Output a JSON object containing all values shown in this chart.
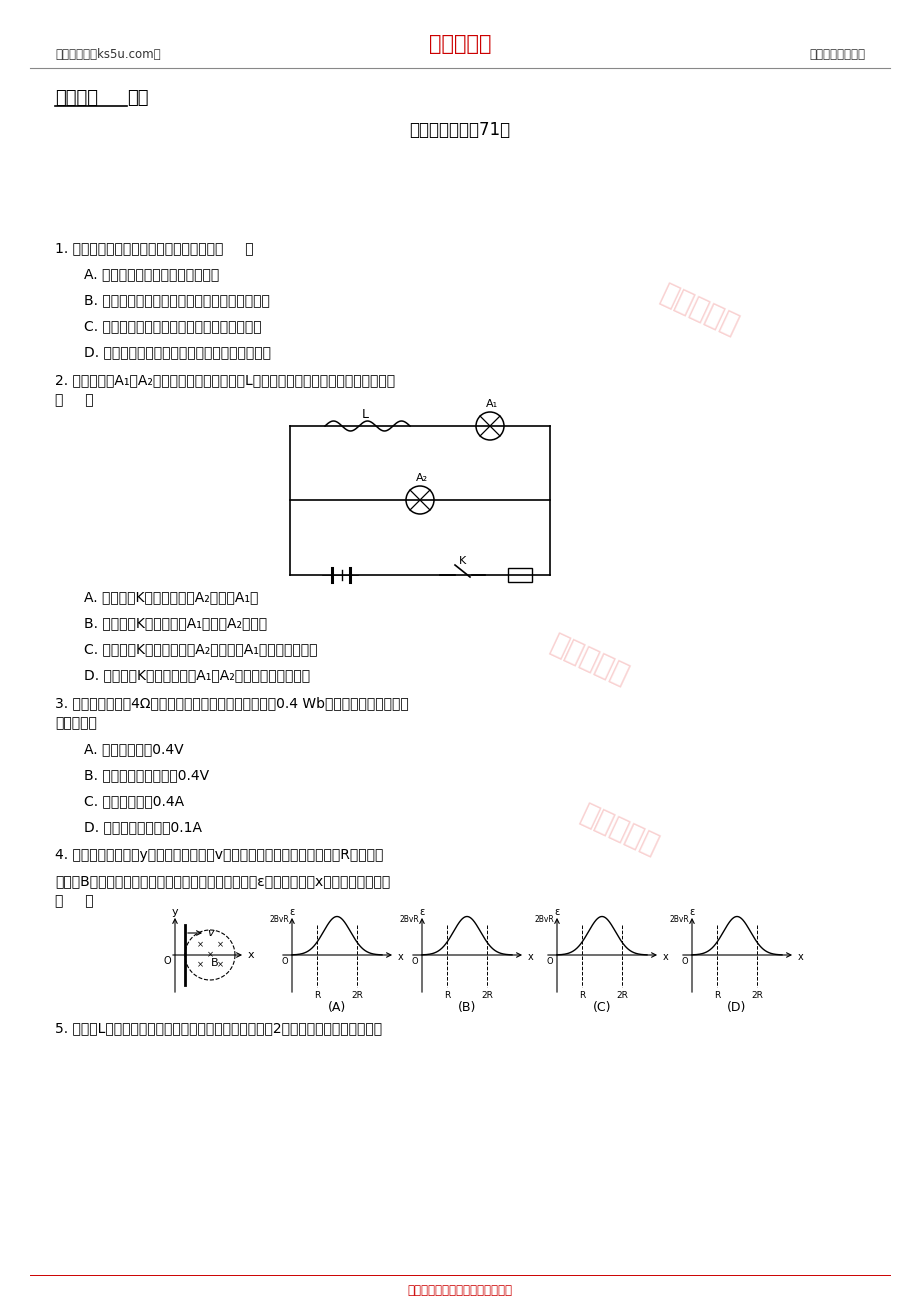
{
  "bg_color": "#ffffff",
  "header_left": "高考资源网（ks5u.com）",
  "header_center": "高考资源网",
  "header_right": "您身边的高考专家",
  "header_center_color": "#cc0000",
  "header_line_color": "#555555",
  "title_bold": "物理基础",
  "title_normal": "复习",
  "subtitle": "物理基础精练（71）",
  "footer": "高考资源网版权所有，侵权必究！",
  "footer_color": "#cc0000",
  "q1_text": "1. 按照麦克斯韦理论，以下说法正确的是（     ）",
  "q1_a": "A. 在电场的周围空间一定产生磁场",
  "q1_b": "B. 任何变化的电场周围空间一定产生变化的磁场",
  "q1_c": "C. 均匀变化的电场在周围空间产生变化的磁场",
  "q1_d": "D. 振荡的电场在周围空间产生同频率的振荡磁场",
  "q2_text": "2. 如图所示，A₁和A₂是完全相同的灯泡，线圈L的电阻可以忽略，下列说法中正确的是",
  "q2_bracket": "（     ）",
  "q2_a": "A. 合上开关K接通电路时，A₂始终比A₁亮",
  "q2_b": "B. 合上开关K接通电路时A₁同时与A₂一样亮",
  "q2_c": "C. 断开开关K切断电路时，A₂先熄灭，A₁过一会儿才熄灭",
  "q2_d": "D. 断开开关K切断电路时，A₁和A₂都要过一会儿才熄灭",
  "q3_text": "3. 穿过一个电阻为4Ω的闭合线圈的磁通量每秒均匀减小0.4 Wb，则线圈中，下列说法",
  "q3_text2": "正确的是（",
  "q3_a": "A. 感应电动势为0.4V",
  "q3_b": "B. 感应电动势每秒减小0.4V",
  "q3_c": "C. 感应电流恒为0.4A",
  "q3_d": "D. 感应电流每秒减小0.1A",
  "q4_text1": "4. 如图所示，平行于y轴的导体棒以速度v向右匀速直线运动，经过半径为R、磁感应",
  "q4_text2": "强度为B的圆形匀强磁场区域，导体棒中的感应电动势ε与导体棒位置x关系的图象正确是",
  "q4_bracket": "（     ）",
  "q5_text": "5. 边长为L的正方形金属框在水平恒力作用下，穿过如图2所示的有界匀强磁场，磁场"
}
